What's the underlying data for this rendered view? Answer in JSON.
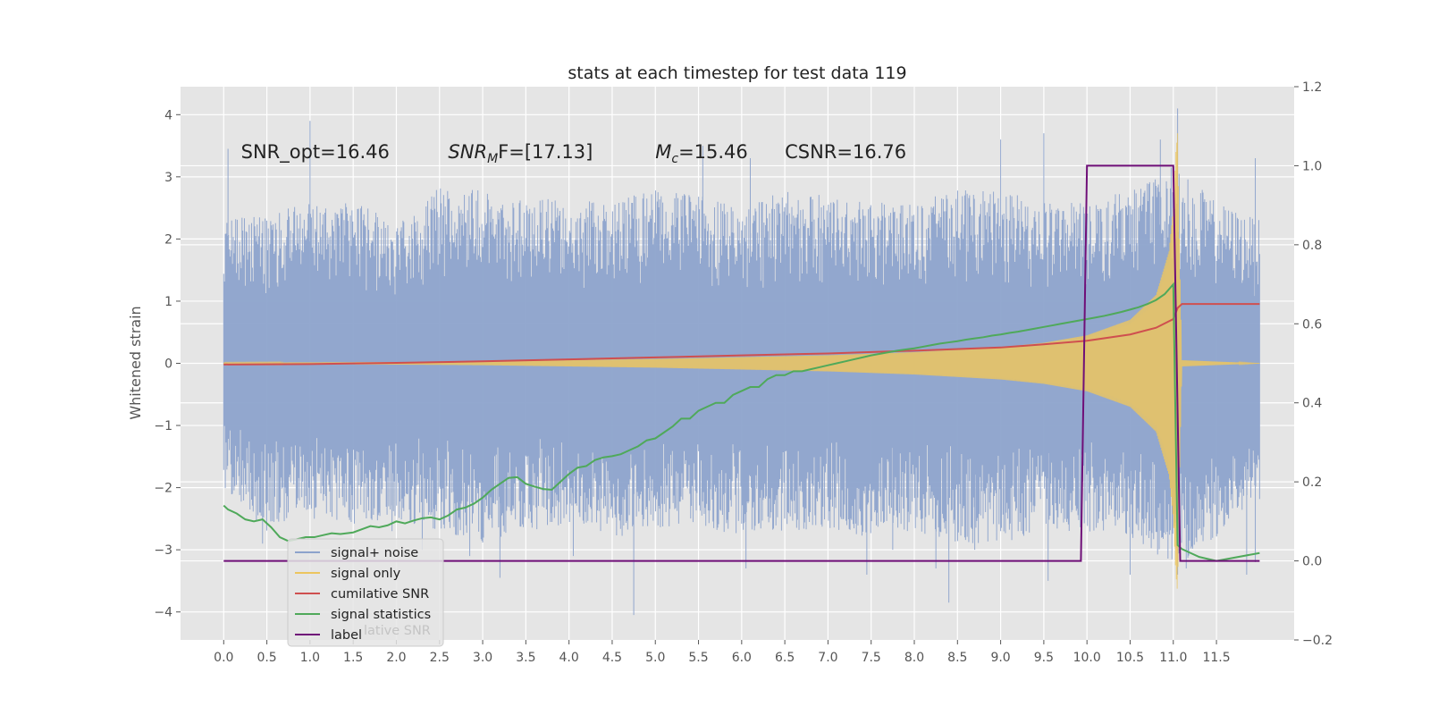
{
  "chart_data": {
    "type": "line",
    "title": "stats at each timestep for test data 119",
    "ylabel": "Whitened strain",
    "xlabel": "",
    "xlim": [
      -0.5,
      12.4
    ],
    "ylim": [
      -4.45,
      4.45
    ],
    "y2lim": [
      -0.2,
      1.2
    ],
    "grid": true,
    "x_ticks": [
      0.0,
      0.5,
      1.0,
      1.5,
      2.0,
      2.5,
      3.0,
      3.5,
      4.0,
      4.5,
      5.0,
      5.5,
      6.0,
      6.5,
      7.0,
      7.5,
      8.0,
      8.5,
      9.0,
      9.5,
      10.0,
      10.5,
      11.0,
      11.5
    ],
    "x_tick_labels": [
      "0.0",
      "0.5",
      "1.0",
      "1.5",
      "2.0",
      "2.5",
      "3.0",
      "3.5",
      "4.0",
      "4.5",
      "5.0",
      "5.5",
      "6.0",
      "6.5",
      "7.0",
      "7.5",
      "8.0",
      "8.5",
      "9.0",
      "9.5",
      "10.0",
      "10.5",
      "11.0",
      "11.5"
    ],
    "y_ticks": [
      4,
      3,
      2,
      1,
      0,
      -1,
      -2,
      -3,
      -4
    ],
    "y_tick_labels": [
      "4",
      "3",
      "2",
      "1",
      "0",
      "−1",
      "−2",
      "−3",
      "−4"
    ],
    "y2_ticks": [
      1.2,
      1.0,
      0.8,
      0.6,
      0.4,
      0.2,
      0.0,
      -0.2
    ],
    "y2_tick_labels": [
      "1.2",
      "1.0",
      "0.8",
      "0.6",
      "0.4",
      "0.2",
      "0.0",
      "−0.2"
    ],
    "annotations": [
      {
        "pre": "SNR_opt=16.46",
        "sub": "",
        "post": "",
        "x": 0.2
      },
      {
        "pre": "SNR",
        "sub": "M",
        "post": "F=[17.13]",
        "x": 2.6,
        "italic_pre": true
      },
      {
        "pre": "M",
        "sub": "c",
        "post": "=15.46",
        "x": 5.0,
        "italic_pre": true
      },
      {
        "pre": "CSNR=16.76",
        "sub": "",
        "post": "",
        "x": 6.5
      }
    ],
    "annotation_y": 3.3,
    "legend": {
      "placement": "lower-left",
      "entries": [
        {
          "label": "signal+ noise",
          "color": "#8da3cc"
        },
        {
          "label": "signal only",
          "color": "#ecc55f"
        },
        {
          "label": "cumilative SNR",
          "color": "#cf4f4f"
        },
        {
          "label": "signal statistics",
          "color": "#4fa95a"
        },
        {
          "label": "label",
          "color": "#6f0f78"
        }
      ],
      "ghost_text": "lative SNR"
    },
    "series": [
      {
        "name": "signal+ noise",
        "axis": "left",
        "color": "#8da3cc",
        "x_range": [
          0.0,
          12.0
        ],
        "upper_envelope": [
          [
            0.0,
            2.3
          ],
          [
            0.5,
            2.4
          ],
          [
            1.0,
            2.6
          ],
          [
            1.5,
            2.7
          ],
          [
            2.0,
            2.2
          ],
          [
            2.5,
            2.9
          ],
          [
            3.0,
            2.8
          ],
          [
            3.5,
            2.6
          ],
          [
            4.0,
            2.7
          ],
          [
            4.5,
            2.6
          ],
          [
            5.0,
            2.8
          ],
          [
            5.5,
            2.7
          ],
          [
            6.0,
            2.5
          ],
          [
            6.5,
            2.8
          ],
          [
            7.0,
            2.7
          ],
          [
            7.5,
            2.6
          ],
          [
            8.0,
            2.6
          ],
          [
            8.5,
            2.8
          ],
          [
            9.0,
            2.8
          ],
          [
            9.5,
            2.6
          ],
          [
            10.0,
            2.6
          ],
          [
            10.5,
            2.8
          ],
          [
            11.0,
            3.2
          ],
          [
            11.5,
            2.6
          ],
          [
            12.0,
            2.3
          ]
        ],
        "lower_envelope": [
          [
            0.0,
            -2.0
          ],
          [
            0.5,
            -2.7
          ],
          [
            1.0,
            -2.4
          ],
          [
            1.5,
            -2.6
          ],
          [
            2.0,
            -2.5
          ],
          [
            2.5,
            -2.7
          ],
          [
            3.0,
            -2.9
          ],
          [
            3.5,
            -2.7
          ],
          [
            4.0,
            -2.6
          ],
          [
            4.5,
            -2.8
          ],
          [
            5.0,
            -2.7
          ],
          [
            5.5,
            -2.6
          ],
          [
            6.0,
            -2.8
          ],
          [
            6.5,
            -2.7
          ],
          [
            7.0,
            -2.7
          ],
          [
            7.5,
            -2.8
          ],
          [
            8.0,
            -2.7
          ],
          [
            8.5,
            -2.9
          ],
          [
            9.0,
            -2.9
          ],
          [
            9.5,
            -2.7
          ],
          [
            10.0,
            -2.7
          ],
          [
            10.5,
            -2.8
          ],
          [
            11.0,
            -3.3
          ],
          [
            11.5,
            -2.8
          ],
          [
            12.0,
            -2.2
          ]
        ],
        "spikes": [
          [
            0.05,
            3.45
          ],
          [
            0.1,
            -2.1
          ],
          [
            0.45,
            -2.9
          ],
          [
            1.0,
            3.9
          ],
          [
            1.05,
            -2.5
          ],
          [
            1.95,
            -2.7
          ],
          [
            2.3,
            -3.0
          ],
          [
            2.85,
            -3.1
          ],
          [
            3.2,
            -3.45
          ],
          [
            3.75,
            -2.6
          ],
          [
            4.05,
            -3.1
          ],
          [
            4.75,
            -4.05
          ],
          [
            5.55,
            3.5
          ],
          [
            6.1,
            3.3
          ],
          [
            6.05,
            -3.3
          ],
          [
            7.45,
            -3.4
          ],
          [
            7.75,
            -3.0
          ],
          [
            8.25,
            -3.3
          ],
          [
            8.4,
            -3.85
          ],
          [
            8.7,
            -3.0
          ],
          [
            9.0,
            3.6
          ],
          [
            9.5,
            3.7
          ],
          [
            9.55,
            -3.5
          ],
          [
            10.5,
            -3.4
          ],
          [
            10.85,
            3.6
          ],
          [
            11.05,
            4.1
          ],
          [
            11.05,
            -3.4
          ],
          [
            11.15,
            -3.3
          ],
          [
            11.85,
            -3.4
          ],
          [
            11.95,
            3.3
          ],
          [
            11.95,
            -3.2
          ]
        ]
      },
      {
        "name": "signal only",
        "axis": "left",
        "color": "#ecc55f",
        "amplitude": [
          [
            0.0,
            0.01
          ],
          [
            1.0,
            0.015
          ],
          [
            2.0,
            0.02
          ],
          [
            3.0,
            0.03
          ],
          [
            4.0,
            0.05
          ],
          [
            5.0,
            0.07
          ],
          [
            6.0,
            0.1
          ],
          [
            7.0,
            0.13
          ],
          [
            8.0,
            0.18
          ],
          [
            9.0,
            0.26
          ],
          [
            9.5,
            0.33
          ],
          [
            10.0,
            0.45
          ],
          [
            10.5,
            0.7
          ],
          [
            10.8,
            1.1
          ],
          [
            10.95,
            1.8
          ],
          [
            11.0,
            2.5
          ],
          [
            11.03,
            3.4
          ],
          [
            11.05,
            3.7
          ],
          [
            11.07,
            2.0
          ],
          [
            11.1,
            0.05
          ],
          [
            12.0,
            0.0
          ]
        ]
      },
      {
        "name": "cumilative SNR",
        "axis": "right",
        "color": "#cf4f4f",
        "points": [
          [
            0.0,
            0.497
          ],
          [
            1.0,
            0.498
          ],
          [
            2.0,
            0.501
          ],
          [
            3.0,
            0.505
          ],
          [
            4.0,
            0.51
          ],
          [
            5.0,
            0.515
          ],
          [
            6.0,
            0.52
          ],
          [
            7.0,
            0.525
          ],
          [
            8.0,
            0.532
          ],
          [
            9.0,
            0.54
          ],
          [
            9.5,
            0.548
          ],
          [
            10.0,
            0.557
          ],
          [
            10.5,
            0.573
          ],
          [
            10.8,
            0.59
          ],
          [
            11.0,
            0.612
          ],
          [
            11.05,
            0.64
          ],
          [
            11.1,
            0.65
          ],
          [
            12.0,
            0.65
          ]
        ]
      },
      {
        "name": "signal statistics",
        "axis": "right",
        "color": "#4fa95a",
        "points": [
          [
            0.0,
            0.14
          ],
          [
            0.05,
            0.13
          ],
          [
            0.15,
            0.12
          ],
          [
            0.25,
            0.105
          ],
          [
            0.35,
            0.1
          ],
          [
            0.45,
            0.105
          ],
          [
            0.55,
            0.085
          ],
          [
            0.65,
            0.06
          ],
          [
            0.75,
            0.05
          ],
          [
            0.85,
            0.055
          ],
          [
            0.95,
            0.06
          ],
          [
            1.05,
            0.06
          ],
          [
            1.15,
            0.065
          ],
          [
            1.25,
            0.07
          ],
          [
            1.35,
            0.068
          ],
          [
            1.5,
            0.072
          ],
          [
            1.6,
            0.08
          ],
          [
            1.7,
            0.088
          ],
          [
            1.8,
            0.085
          ],
          [
            1.9,
            0.09
          ],
          [
            2.0,
            0.1
          ],
          [
            2.1,
            0.095
          ],
          [
            2.2,
            0.102
          ],
          [
            2.3,
            0.108
          ],
          [
            2.4,
            0.11
          ],
          [
            2.5,
            0.105
          ],
          [
            2.6,
            0.115
          ],
          [
            2.7,
            0.13
          ],
          [
            2.8,
            0.135
          ],
          [
            2.9,
            0.145
          ],
          [
            3.0,
            0.16
          ],
          [
            3.1,
            0.18
          ],
          [
            3.2,
            0.195
          ],
          [
            3.3,
            0.21
          ],
          [
            3.4,
            0.212
          ],
          [
            3.5,
            0.195
          ],
          [
            3.6,
            0.188
          ],
          [
            3.7,
            0.182
          ],
          [
            3.8,
            0.18
          ],
          [
            3.9,
            0.2
          ],
          [
            4.0,
            0.22
          ],
          [
            4.1,
            0.236
          ],
          [
            4.2,
            0.24
          ],
          [
            4.3,
            0.255
          ],
          [
            4.4,
            0.262
          ],
          [
            4.5,
            0.265
          ],
          [
            4.6,
            0.27
          ],
          [
            4.7,
            0.28
          ],
          [
            4.8,
            0.29
          ],
          [
            4.9,
            0.305
          ],
          [
            5.0,
            0.31
          ],
          [
            5.1,
            0.325
          ],
          [
            5.2,
            0.34
          ],
          [
            5.3,
            0.36
          ],
          [
            5.4,
            0.36
          ],
          [
            5.5,
            0.38
          ],
          [
            5.6,
            0.39
          ],
          [
            5.7,
            0.4
          ],
          [
            5.8,
            0.4
          ],
          [
            5.9,
            0.42
          ],
          [
            6.0,
            0.43
          ],
          [
            6.1,
            0.44
          ],
          [
            6.2,
            0.44
          ],
          [
            6.3,
            0.46
          ],
          [
            6.4,
            0.47
          ],
          [
            6.5,
            0.47
          ],
          [
            6.6,
            0.48
          ],
          [
            6.7,
            0.48
          ],
          [
            6.8,
            0.485
          ],
          [
            6.9,
            0.49
          ],
          [
            7.0,
            0.495
          ],
          [
            7.1,
            0.5
          ],
          [
            7.2,
            0.505
          ],
          [
            7.3,
            0.51
          ],
          [
            7.4,
            0.515
          ],
          [
            7.5,
            0.52
          ],
          [
            7.6,
            0.524
          ],
          [
            7.7,
            0.528
          ],
          [
            7.8,
            0.532
          ],
          [
            7.9,
            0.535
          ],
          [
            8.0,
            0.538
          ],
          [
            8.1,
            0.542
          ],
          [
            8.2,
            0.546
          ],
          [
            8.3,
            0.55
          ],
          [
            8.4,
            0.553
          ],
          [
            8.5,
            0.556
          ],
          [
            8.6,
            0.56
          ],
          [
            8.7,
            0.563
          ],
          [
            8.8,
            0.566
          ],
          [
            8.9,
            0.57
          ],
          [
            9.0,
            0.573
          ],
          [
            9.1,
            0.577
          ],
          [
            9.2,
            0.58
          ],
          [
            9.3,
            0.584
          ],
          [
            9.4,
            0.588
          ],
          [
            9.5,
            0.592
          ],
          [
            9.6,
            0.596
          ],
          [
            9.7,
            0.6
          ],
          [
            9.8,
            0.604
          ],
          [
            9.9,
            0.608
          ],
          [
            10.0,
            0.612
          ],
          [
            10.1,
            0.616
          ],
          [
            10.2,
            0.62
          ],
          [
            10.3,
            0.625
          ],
          [
            10.4,
            0.63
          ],
          [
            10.5,
            0.636
          ],
          [
            10.6,
            0.642
          ],
          [
            10.7,
            0.65
          ],
          [
            10.8,
            0.66
          ],
          [
            10.9,
            0.675
          ],
          [
            11.0,
            0.7
          ],
          [
            11.05,
            0.04
          ],
          [
            11.1,
            0.03
          ],
          [
            11.2,
            0.02
          ],
          [
            11.3,
            0.01
          ],
          [
            11.4,
            0.005
          ],
          [
            11.5,
            0.0
          ],
          [
            12.0,
            0.02
          ]
        ]
      },
      {
        "name": "label",
        "axis": "right",
        "color": "#6f0f78",
        "points": [
          [
            0.0,
            0.0
          ],
          [
            9.93,
            0.0
          ],
          [
            10.0,
            1.0
          ],
          [
            11.0,
            1.0
          ],
          [
            11.08,
            0.0
          ],
          [
            12.0,
            0.0
          ]
        ]
      }
    ]
  }
}
